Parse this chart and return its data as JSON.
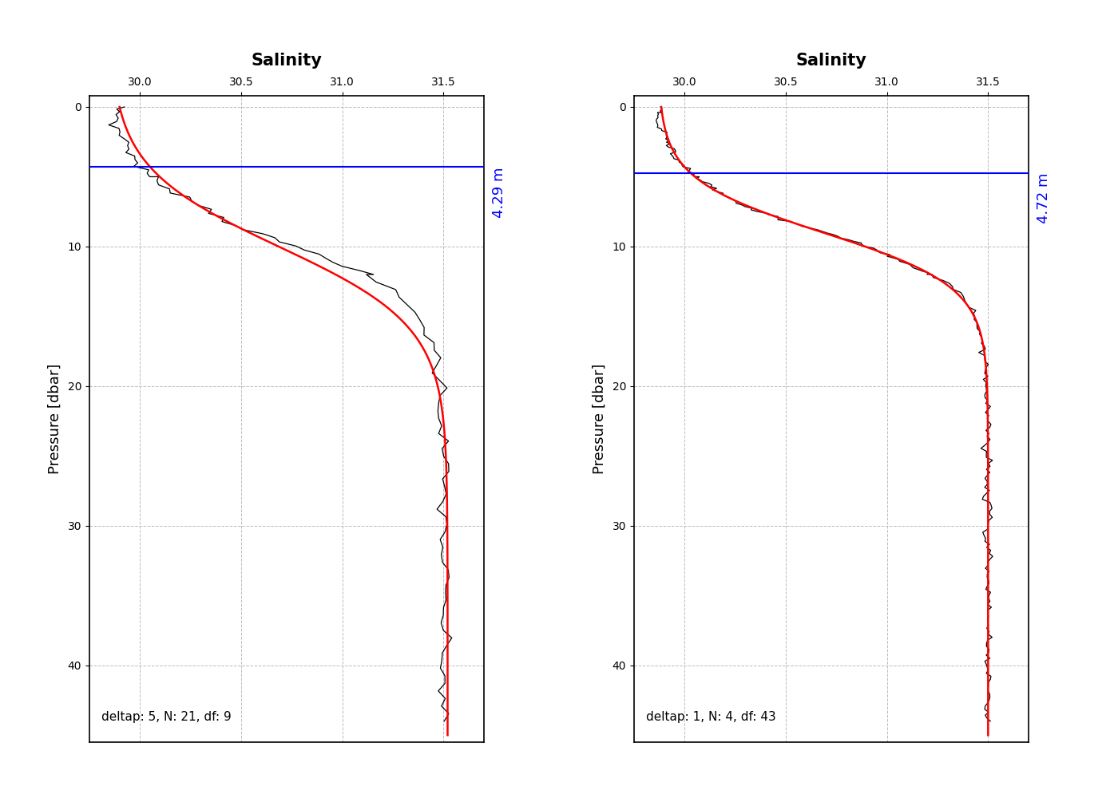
{
  "xlabel_top": "Salinity",
  "ylabel": "Pressure [dbar]",
  "xlim": [
    29.75,
    31.7
  ],
  "xticks": [
    30.0,
    30.5,
    31.0,
    31.5
  ],
  "ylim": [
    45.5,
    -0.8
  ],
  "yticks": [
    0,
    10,
    20,
    30,
    40
  ],
  "hline_p1": 4.29,
  "hline_p2": 4.72,
  "annotation_1": "4.29 m",
  "annotation_2": "4.72 m",
  "label_1": "deltap: 5, N: 21, df: 9",
  "label_2": "deltap: 1, N: 4, df: 43",
  "background_color": "#ffffff",
  "grid_color": "#bbbbbb",
  "data_color": "#000000",
  "smooth_color": "#ff0000",
  "hline_color": "#0000ff",
  "annotation_color": "#0000ff"
}
